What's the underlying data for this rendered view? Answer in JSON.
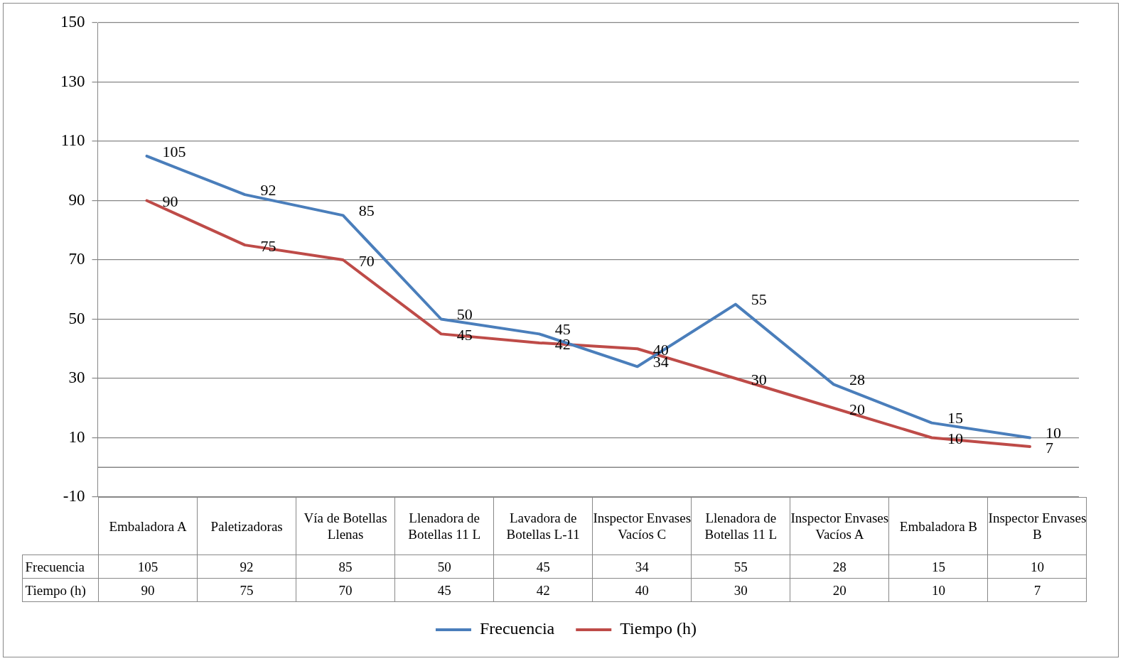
{
  "chart_data": {
    "type": "line",
    "categories": [
      "Embaladora A",
      "Paletizadoras",
      "Vía de Botellas Llenas",
      "Llenadora de Botellas 11 L",
      "Lavadora de Botellas L-11",
      "Inspector Envases Vacíos C",
      "Llenadora de Botellas 11 L",
      "Inspector Envases Vacíos A",
      "Embaladora B",
      "Inspector Envases B"
    ],
    "series": [
      {
        "name": "Frecuencia",
        "color": "#4a7ebb",
        "values": [
          105,
          92,
          85,
          50,
          45,
          34,
          55,
          28,
          15,
          10
        ],
        "value_labels": [
          "105",
          "92",
          "85",
          "50",
          "45",
          "34",
          "55",
          "28",
          "15",
          "10"
        ]
      },
      {
        "name": "Tiempo (h)",
        "color": "#be4b48",
        "values": [
          90,
          75,
          70,
          45,
          42,
          40,
          30,
          20,
          10,
          7
        ],
        "value_labels": [
          "90",
          "75",
          "70",
          "45",
          "42",
          "40",
          "30",
          "20",
          "10",
          "7"
        ]
      }
    ],
    "ylim": [
      -10,
      150
    ],
    "yticks": [
      -10,
      10,
      30,
      50,
      70,
      90,
      110,
      130,
      150
    ],
    "ref_lines": [
      {
        "axis": "y",
        "value": 0,
        "color": "#868686"
      }
    ],
    "annotations": [
      "105",
      "92",
      "85",
      "50",
      "45",
      "34",
      "55",
      "28",
      "15",
      "10",
      "90",
      "75",
      "70",
      "45",
      "42",
      "40",
      "30",
      "20",
      "10",
      "7"
    ],
    "grid": "y",
    "legend": "bottom",
    "marker": "none",
    "line_style": "solid",
    "data_labels": true
  }
}
